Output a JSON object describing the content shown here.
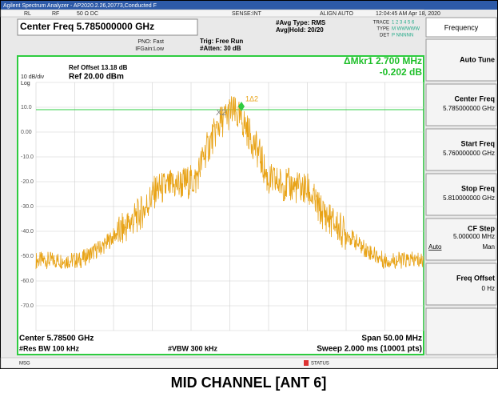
{
  "window_title": "Agilent Spectrum Analyzer - AP2020.2.26,20773,Conducted F",
  "status_row": {
    "rl": "RL",
    "rf": "RF",
    "coupling": "50 Ω DC",
    "sense": "SENSE:INT",
    "align": "ALIGN AUTO",
    "datetime": "12:04:45 AM Apr 18, 2020"
  },
  "header": {
    "center_freq": "Center Freq 5.785000000 GHz",
    "pno": "PNO: Fast",
    "ifgain": "IFGain:Low",
    "trig": "Trig: Free Run",
    "atten": "#Atten: 30 dB",
    "avg_type": "#Avg Type: RMS",
    "avg_hold": "Avg|Hold: 20/20",
    "trace": "TRACE",
    "trace_nums": "1 2 3 4 5 6",
    "type": "TYPE",
    "type_vals": "M WWWWW",
    "det": "DET",
    "det_vals": "P NNNNN"
  },
  "display": {
    "scale": "10 dB/div",
    "log": "Log",
    "ref_offset": "Ref Offset 13.18 dB",
    "ref_level": "Ref 20.00 dBm",
    "marker_delta": "ΔMkr1 2.700 MHz",
    "marker_value": "-0.202 dB",
    "marker_label": "1Δ2",
    "ref_marker_label": "X2",
    "y_labels": [
      "10.0",
      "0.00",
      "-10.0",
      "-20.0",
      "-30.0",
      "-40.0",
      "-50.0",
      "-60.0",
      "-70.0"
    ]
  },
  "footer": {
    "center": "Center 5.78500 GHz",
    "span": "Span 50.00 MHz",
    "rbw": "#Res BW 100 kHz",
    "vbw": "#VBW 300 kHz",
    "sweep": "Sweep  2.000 ms (10001 pts)",
    "msg": "MSG",
    "status": "STATUS"
  },
  "softkeys": {
    "menu": "Frequency",
    "auto_tune": "Auto Tune",
    "center_label": "Center Freq",
    "center_value": "5.785000000 GHz",
    "start_label": "Start Freq",
    "start_value": "5.760000000 GHz",
    "stop_label": "Stop Freq",
    "stop_value": "5.810000000 GHz",
    "cfstep_label": "CF Step",
    "cfstep_value": "5.000000 MHz",
    "cfstep_auto": "Auto",
    "cfstep_man": "Man",
    "offset_label": "Freq Offset",
    "offset_value": "0 Hz"
  },
  "caption": "MID CHANNEL [ANT 6]"
}
